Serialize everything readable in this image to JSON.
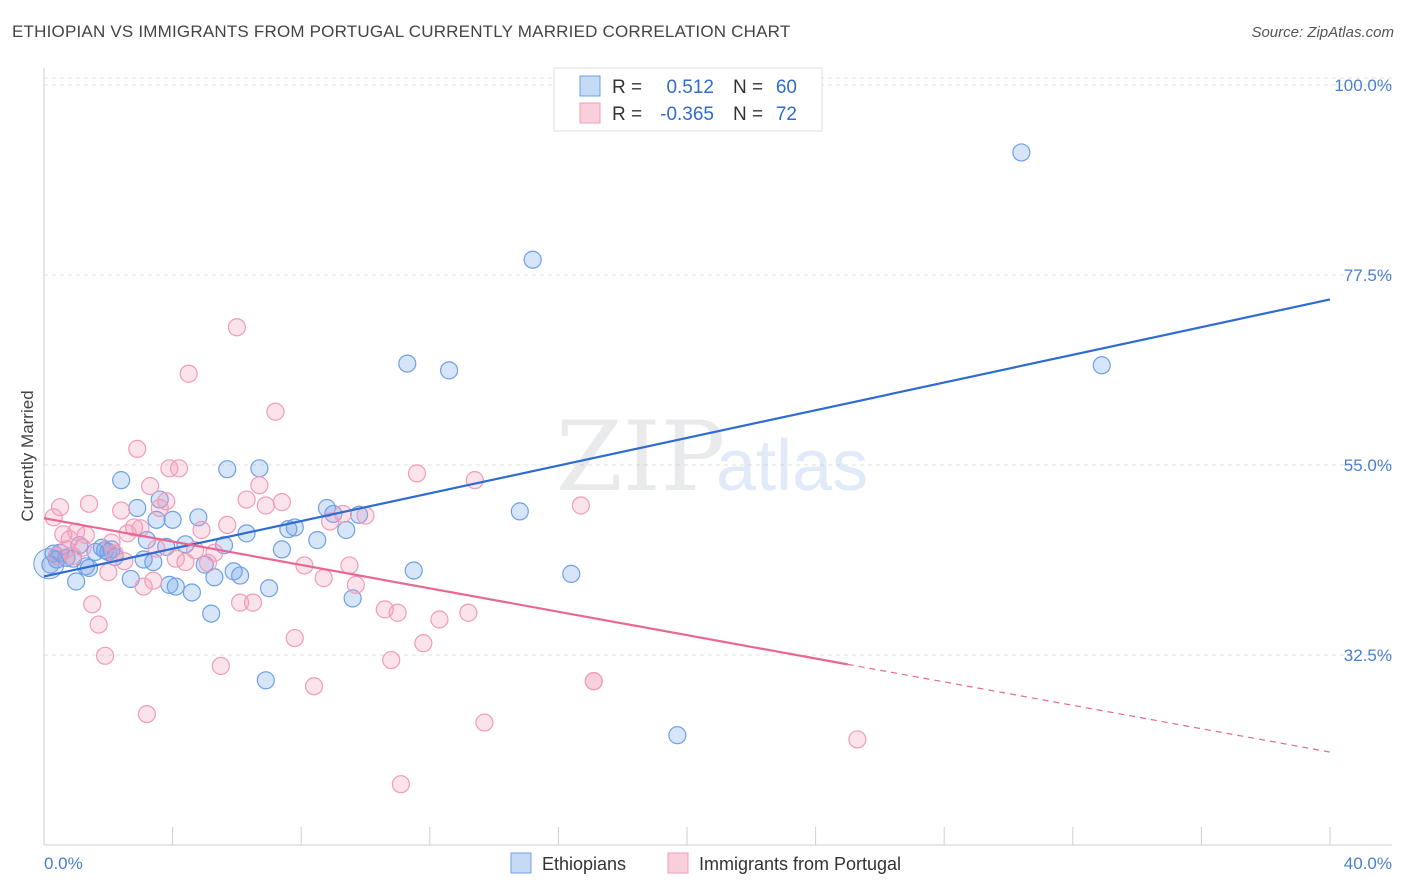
{
  "title": "ETHIOPIAN VS IMMIGRANTS FROM PORTUGAL CURRENTLY MARRIED CORRELATION CHART",
  "source": "Source: ZipAtlas.com",
  "watermark": {
    "zip": "ZIP",
    "atlas": "atlas"
  },
  "chart_data": {
    "type": "scatter",
    "ylabel": "Currently Married",
    "xlim": [
      0.0,
      40.0
    ],
    "ylim": [
      10.0,
      102.0
    ],
    "x_tick_labels": {
      "min": "0.0%",
      "max": "40.0%"
    },
    "y_ticks": [
      {
        "value": 100.0,
        "label": "100.0%"
      },
      {
        "value": 77.5,
        "label": "77.5%"
      },
      {
        "value": 55.0,
        "label": "55.0%"
      },
      {
        "value": 32.5,
        "label": "32.5%"
      }
    ],
    "grid": "horizontal dashed",
    "legend": {
      "position": "top-center",
      "entries": [
        {
          "r_label": "R =",
          "r_value": "0.512",
          "n_label": "N =",
          "n_value": "60"
        },
        {
          "r_label": "R =",
          "r_value": "-0.365",
          "n_label": "N =",
          "n_value": "72"
        }
      ]
    },
    "series": [
      {
        "name": "Ethiopians",
        "color": "#6ea0e6",
        "line_color": "#2f6bd1",
        "trend": {
          "x0": 0.0,
          "y0": 41.8,
          "x1": 40.0,
          "y1": 74.6,
          "dash_from": null
        },
        "points": [
          [
            0.2,
            43.2
          ],
          [
            0.4,
            43.8
          ],
          [
            0.5,
            44.6
          ],
          [
            0.7,
            44.0
          ],
          [
            0.9,
            43.9
          ],
          [
            1.1,
            45.5
          ],
          [
            1.0,
            41.2
          ],
          [
            1.4,
            42.8
          ],
          [
            1.6,
            44.7
          ],
          [
            1.8,
            45.2
          ],
          [
            1.9,
            44.9
          ],
          [
            2.1,
            45.0
          ],
          [
            2.2,
            44.1
          ],
          [
            2.4,
            53.2
          ],
          [
            2.7,
            41.5
          ],
          [
            2.9,
            49.9
          ],
          [
            3.1,
            43.8
          ],
          [
            3.2,
            46.1
          ],
          [
            3.4,
            43.5
          ],
          [
            3.5,
            48.5
          ],
          [
            3.6,
            50.9
          ],
          [
            3.9,
            40.8
          ],
          [
            4.0,
            48.5
          ],
          [
            4.1,
            40.6
          ],
          [
            4.4,
            45.6
          ],
          [
            4.6,
            39.9
          ],
          [
            4.8,
            48.8
          ],
          [
            5.0,
            43.2
          ],
          [
            5.2,
            37.4
          ],
          [
            5.3,
            41.7
          ],
          [
            5.6,
            45.5
          ],
          [
            5.7,
            54.5
          ],
          [
            5.9,
            42.4
          ],
          [
            6.1,
            41.9
          ],
          [
            6.3,
            46.9
          ],
          [
            6.7,
            54.6
          ],
          [
            6.9,
            29.5
          ],
          [
            7.0,
            40.4
          ],
          [
            7.4,
            45.0
          ],
          [
            7.6,
            47.4
          ],
          [
            7.8,
            47.6
          ],
          [
            8.5,
            46.1
          ],
          [
            8.8,
            49.9
          ],
          [
            9.0,
            49.2
          ],
          [
            9.4,
            47.3
          ],
          [
            9.6,
            39.2
          ],
          [
            9.8,
            49.1
          ],
          [
            11.5,
            42.5
          ],
          [
            11.3,
            67.0
          ],
          [
            12.6,
            66.2
          ],
          [
            14.8,
            49.5
          ],
          [
            16.4,
            42.1
          ],
          [
            19.7,
            23.0
          ],
          [
            15.2,
            79.3
          ],
          [
            30.4,
            92.0
          ],
          [
            32.9,
            66.8
          ],
          [
            0.3,
            44.5
          ],
          [
            1.3,
            43.0
          ],
          [
            2.0,
            44.7
          ],
          [
            3.8,
            45.3
          ]
        ]
      },
      {
        "name": "Immigrants from Portugal",
        "color": "#f29bb8",
        "line_color": "#e96795",
        "trend": {
          "x0": 0.0,
          "y0": 48.7,
          "x1": 40.0,
          "y1": 21.0,
          "dash_from": 25.0
        },
        "points": [
          [
            0.3,
            48.8
          ],
          [
            0.5,
            50.0
          ],
          [
            0.6,
            46.8
          ],
          [
            0.7,
            45.0
          ],
          [
            0.8,
            46.2
          ],
          [
            0.9,
            44.2
          ],
          [
            1.0,
            47.1
          ],
          [
            1.2,
            45.2
          ],
          [
            1.3,
            46.7
          ],
          [
            1.4,
            50.4
          ],
          [
            1.5,
            38.5
          ],
          [
            1.7,
            36.1
          ],
          [
            1.9,
            32.4
          ],
          [
            2.1,
            45.8
          ],
          [
            2.2,
            44.5
          ],
          [
            2.4,
            49.6
          ],
          [
            2.5,
            43.6
          ],
          [
            2.6,
            46.9
          ],
          [
            2.8,
            47.6
          ],
          [
            2.9,
            56.9
          ],
          [
            3.0,
            47.5
          ],
          [
            3.1,
            40.6
          ],
          [
            3.2,
            25.5
          ],
          [
            3.3,
            52.5
          ],
          [
            3.4,
            41.3
          ],
          [
            3.5,
            45.1
          ],
          [
            3.6,
            49.9
          ],
          [
            3.8,
            50.7
          ],
          [
            3.9,
            54.6
          ],
          [
            4.1,
            43.9
          ],
          [
            4.2,
            54.6
          ],
          [
            4.4,
            43.5
          ],
          [
            4.5,
            65.8
          ],
          [
            4.7,
            44.9
          ],
          [
            4.9,
            47.3
          ],
          [
            5.1,
            43.4
          ],
          [
            5.3,
            44.6
          ],
          [
            5.5,
            31.2
          ],
          [
            5.7,
            47.9
          ],
          [
            6.0,
            71.3
          ],
          [
            6.1,
            38.7
          ],
          [
            6.3,
            50.9
          ],
          [
            6.5,
            38.7
          ],
          [
            6.7,
            52.6
          ],
          [
            6.9,
            50.2
          ],
          [
            7.2,
            61.3
          ],
          [
            7.4,
            50.6
          ],
          [
            7.8,
            34.5
          ],
          [
            8.1,
            43.1
          ],
          [
            8.4,
            28.8
          ],
          [
            8.7,
            41.6
          ],
          [
            8.9,
            48.3
          ],
          [
            9.3,
            49.2
          ],
          [
            9.5,
            43.1
          ],
          [
            9.7,
            40.8
          ],
          [
            10.0,
            49.0
          ],
          [
            10.6,
            37.9
          ],
          [
            10.8,
            31.9
          ],
          [
            11.0,
            37.5
          ],
          [
            11.6,
            54.0
          ],
          [
            11.8,
            33.9
          ],
          [
            12.3,
            36.7
          ],
          [
            13.2,
            37.5
          ],
          [
            13.4,
            53.2
          ],
          [
            13.7,
            24.5
          ],
          [
            17.1,
            29.4
          ],
          [
            11.1,
            17.2
          ],
          [
            17.1,
            29.4
          ],
          [
            25.3,
            22.5
          ],
          [
            16.7,
            50.2
          ],
          [
            0.4,
            44.2
          ],
          [
            2.0,
            42.3
          ]
        ]
      }
    ]
  }
}
